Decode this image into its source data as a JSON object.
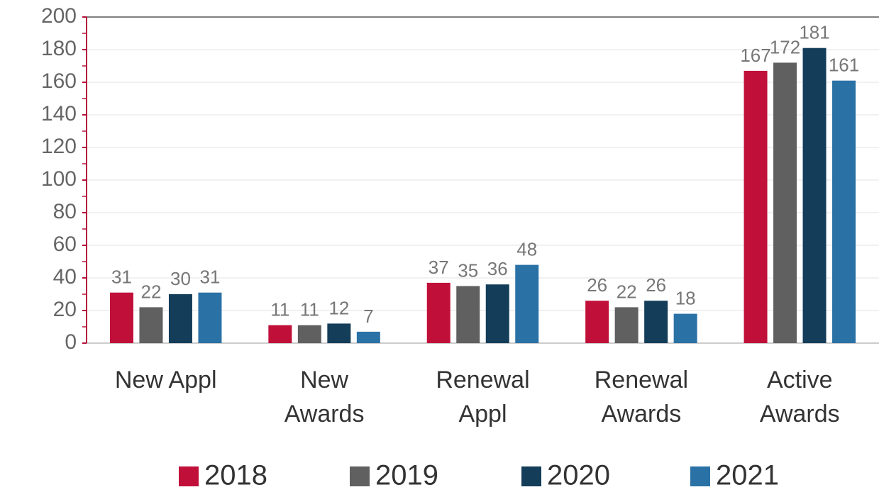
{
  "chart_data": {
    "type": "bar",
    "categories": [
      "New Appl",
      "New Awards",
      "Renewal Appl",
      "Renewal Awards",
      "Active Awards"
    ],
    "series": [
      {
        "name": "2018",
        "color": "#c0103a",
        "values": [
          31,
          11,
          37,
          26,
          167
        ]
      },
      {
        "name": "2019",
        "color": "#606060",
        "values": [
          22,
          11,
          35,
          22,
          172
        ]
      },
      {
        "name": "2020",
        "color": "#133d59",
        "values": [
          30,
          12,
          36,
          26,
          181
        ]
      },
      {
        "name": "2021",
        "color": "#2a71a5",
        "values": [
          31,
          7,
          48,
          18,
          161
        ]
      }
    ],
    "ylim": [
      0,
      200
    ],
    "yticks": [
      0,
      20,
      40,
      60,
      80,
      100,
      120,
      140,
      160,
      180,
      200
    ],
    "grid": true,
    "legend": "bottom",
    "axis_color": "#b5123a"
  }
}
